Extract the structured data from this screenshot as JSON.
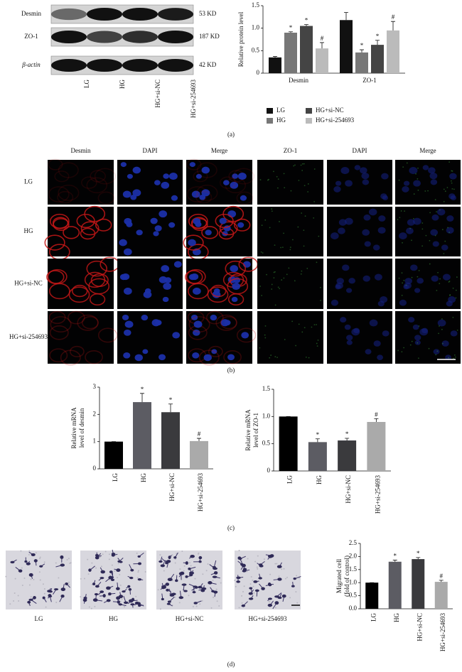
{
  "blot": {
    "proteins": [
      "Desmin",
      "ZO-1",
      "β-actin"
    ],
    "sizes": [
      "53 KD",
      "187 KD",
      "42 KD"
    ],
    "lanes": [
      "LG",
      "HG",
      "HG+si-NC",
      "HG+si-254693"
    ]
  },
  "panel_labels": [
    "(a)",
    "(b)",
    "(c)",
    "(d)"
  ],
  "chart_data": [
    {
      "type": "bar",
      "ylabel": "Relative protein level",
      "categories": [
        "Desmin",
        "ZO-1"
      ],
      "series": [
        {
          "name": "LG",
          "color": "#111111",
          "values": [
            0.35,
            1.18
          ],
          "errors": [
            0.02,
            0.17
          ]
        },
        {
          "name": "HG",
          "color": "#777777",
          "values": [
            0.9,
            0.46
          ],
          "errors": [
            0.02,
            0.06
          ],
          "markers": [
            "*",
            "*"
          ]
        },
        {
          "name": "HG+si-NC",
          "color": "#444444",
          "values": [
            1.05,
            0.63
          ],
          "errors": [
            0.03,
            0.1
          ],
          "markers": [
            "*",
            "*"
          ]
        },
        {
          "name": "HG+si-254693",
          "color": "#bbbbbb",
          "values": [
            0.55,
            0.95
          ],
          "errors": [
            0.13,
            0.2
          ],
          "markers": [
            "#",
            "#"
          ]
        }
      ],
      "ylim": [
        0,
        1.5
      ],
      "yticks": [
        0,
        0.5,
        {
          "value": 1,
          "label": "1.0"
        },
        1.5
      ]
    },
    {
      "type": "bar",
      "ylabel": [
        "Relative mRNA",
        "level of desmin"
      ],
      "categories": [
        "LG",
        "HG",
        "HG+si-NC",
        "HG+si-254693"
      ],
      "values": [
        1,
        2.45,
        2.08,
        1.02
      ],
      "errors": [
        0,
        0.32,
        0.3,
        0.1
      ],
      "markers": [
        null,
        "*",
        "*",
        "#"
      ],
      "colors": [
        "#000000",
        "#5c5c63",
        "#3a3a3d",
        "#aaaaaa"
      ],
      "ylim": [
        0,
        3
      ],
      "yticks": [
        0,
        1,
        2,
        3
      ]
    },
    {
      "type": "bar",
      "ylabel": [
        "Relative mRNA",
        "level of ZO-1"
      ],
      "categories": [
        "LG",
        "HG",
        "HG+si-NC",
        "HG+si-254693"
      ],
      "values": [
        1,
        0.53,
        0.56,
        0.9
      ],
      "errors": [
        0,
        0.06,
        0.04,
        0.06
      ],
      "markers": [
        null,
        "*",
        "*",
        "#"
      ],
      "colors": [
        "#000000",
        "#5c5c63",
        "#3a3a3d",
        "#aaaaaa"
      ],
      "ylim": [
        0,
        1.5
      ],
      "yticks": [
        0,
        0.5,
        {
          "value": 1,
          "label": "1.0"
        },
        1.5
      ]
    },
    {
      "type": "bar",
      "ylabel": [
        "Migrated cell",
        "(fold of control)"
      ],
      "categories": [
        "LG",
        "HG",
        "HG+si-NC",
        "HG+si-254693"
      ],
      "values": [
        1,
        1.8,
        1.9,
        1.03
      ],
      "errors": [
        0,
        0.06,
        0.06,
        0.06
      ],
      "markers": [
        null,
        "*",
        "*",
        "#"
      ],
      "colors": [
        "#000000",
        "#5c5c63",
        "#3a3a3d",
        "#aaaaaa"
      ],
      "ylim": [
        0,
        2.5
      ],
      "yticks": [
        {
          "value": 0,
          "label": "0.0"
        },
        0.5,
        {
          "value": 1,
          "label": "1.0"
        },
        1.5,
        {
          "value": 2,
          "label": "2.0"
        },
        2.5
      ]
    }
  ],
  "microscopy": {
    "columns": [
      "Desmin",
      "DAPI",
      "Merge",
      "ZO-1",
      "DAPI",
      "Merge"
    ],
    "rows": [
      "LG",
      "HG",
      "HG+si-NC",
      "HG+si-254693"
    ]
  },
  "transwell": {
    "labels": [
      "LG",
      "HG",
      "HG+si-NC",
      "HG+si-254693"
    ]
  }
}
